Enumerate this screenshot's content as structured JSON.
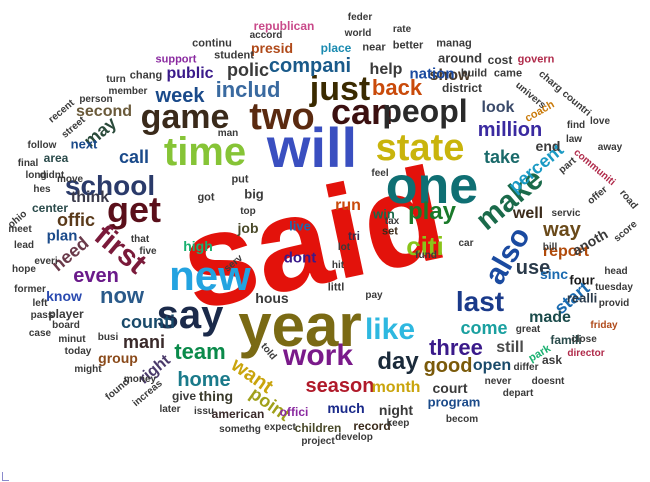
{
  "words": [
    {
      "t": "said",
      "c": "#e3120b"
    },
    {
      "t": "year",
      "c": "#7a6a14"
    },
    {
      "t": "will",
      "c": "#3a4fc0"
    },
    {
      "t": "one",
      "c": "#0f6f73"
    },
    {
      "t": "new",
      "c": "#23a3e0"
    },
    {
      "t": "time",
      "c": "#86c436"
    },
    {
      "t": "state",
      "c": "#c9b40c"
    },
    {
      "t": "two",
      "c": "#5a2a10"
    },
    {
      "t": "say",
      "c": "#1b2a4a"
    },
    {
      "t": "get",
      "c": "#5a0f1a"
    },
    {
      "t": "game",
      "c": "#3a2a1a"
    },
    {
      "t": "can",
      "c": "#3b1010"
    },
    {
      "t": "peopl",
      "c": "#2a2a2a"
    },
    {
      "t": "just",
      "c": "#3a2a00"
    },
    {
      "t": "first",
      "c": "#7a1a3a"
    },
    {
      "t": "school",
      "c": "#2a3a6a"
    },
    {
      "t": "like",
      "c": "#2eb8e0"
    },
    {
      "t": "work",
      "c": "#7a1a8a"
    },
    {
      "t": "make",
      "c": "#1a6a4a"
    },
    {
      "t": "also",
      "c": "#1a4aa0"
    },
    {
      "t": "play",
      "c": "#1a7a2a"
    },
    {
      "t": "citi",
      "c": "#8ac41a"
    },
    {
      "t": "back",
      "c": "#c94a0a"
    },
    {
      "t": "includ",
      "c": "#3a6aa0"
    },
    {
      "t": "week",
      "c": "#1a4a8a"
    },
    {
      "t": "compani",
      "c": "#1a5a8a"
    },
    {
      "t": "polic",
      "c": "#3a3a3a"
    },
    {
      "t": "last",
      "c": "#1a3a8a"
    },
    {
      "t": "team",
      "c": "#0a8a4a"
    },
    {
      "t": "day",
      "c": "#1a2a3a"
    },
    {
      "t": "now",
      "c": "#2a5a8a"
    },
    {
      "t": "even",
      "c": "#6a1a8a"
    },
    {
      "t": "three",
      "c": "#3a1a8a"
    },
    {
      "t": "good",
      "c": "#7a5a0a"
    },
    {
      "t": "million",
      "c": "#3a2aa0"
    },
    {
      "t": "percent",
      "c": "#1a9ac4"
    },
    {
      "t": "use",
      "c": "#2a3a4a"
    },
    {
      "t": "way",
      "c": "#6a4a1a"
    },
    {
      "t": "call",
      "c": "#1a4a8a"
    },
    {
      "t": "take",
      "c": "#1a6a6a"
    },
    {
      "t": "season",
      "c": "#b01a2a"
    },
    {
      "t": "want",
      "c": "#c9a40c"
    },
    {
      "t": "home",
      "c": "#1a7a8a"
    },
    {
      "t": "counti",
      "c": "#1a4a6a"
    },
    {
      "t": "come",
      "c": "#1aa0a0"
    },
    {
      "t": "point",
      "c": "#a0a01a"
    },
    {
      "t": "start",
      "c": "#1a6ab0"
    },
    {
      "t": "run",
      "c": "#c94a0a"
    },
    {
      "t": "offic",
      "c": "#5a3a1a"
    },
    {
      "t": "need",
      "c": "#6a3a4a"
    },
    {
      "t": "may",
      "c": "#2a4a3a"
    },
    {
      "t": "mani",
      "c": "#3a2a2a"
    },
    {
      "t": "think",
      "c": "#3a3a4a"
    },
    {
      "t": "report",
      "c": "#b04a0a"
    },
    {
      "t": "made",
      "c": "#1a4a4a"
    },
    {
      "t": "look",
      "c": "#3a4a6a"
    },
    {
      "t": "show",
      "c": "#4a3a2a"
    },
    {
      "t": "help",
      "c": "#3a3a3a"
    },
    {
      "t": "public",
      "c": "#3a1a8a"
    },
    {
      "t": "nation",
      "c": "#1a4aa0"
    },
    {
      "t": "second",
      "c": "#6a5a3a"
    },
    {
      "t": "right",
      "c": "#4a3a6a"
    },
    {
      "t": "end",
      "c": "#3a3a3a"
    },
    {
      "t": "month",
      "c": "#c9a40c"
    },
    {
      "t": "much",
      "c": "#1a2a8a"
    },
    {
      "t": "open",
      "c": "#1a4a6a"
    },
    {
      "t": "still",
      "c": "#4a4a4a"
    },
    {
      "t": "sinc",
      "c": "#1a6ab0"
    },
    {
      "t": "well",
      "c": "#3a2a1a"
    },
    {
      "t": "anoth",
      "c": "#3a3a3a"
    },
    {
      "t": "plan",
      "c": "#1a4a8a"
    },
    {
      "t": "know",
      "c": "#2a4ab0"
    },
    {
      "t": "dont",
      "c": "#3a1a8a"
    },
    {
      "t": "hous",
      "c": "#3a3a3a"
    },
    {
      "t": "job",
      "c": "#4a4a2a"
    },
    {
      "t": "night",
      "c": "#3a3a3a"
    },
    {
      "t": "court",
      "c": "#3a3a3a"
    },
    {
      "t": "group",
      "c": "#8a4a1a"
    },
    {
      "t": "program",
      "c": "#1a4a8a"
    },
    {
      "t": "four",
      "c": "#1a1a1a"
    },
    {
      "t": "realli",
      "c": "#2a3a4a"
    },
    {
      "t": "famili",
      "c": "#2a4a4a"
    },
    {
      "t": "american",
      "c": "#3a2a2a"
    },
    {
      "t": "thing",
      "c": "#3a3a2a"
    },
    {
      "t": "next",
      "c": "#1a4a8a"
    },
    {
      "t": "area",
      "c": "#2a4a4a"
    },
    {
      "t": "live",
      "c": "#1a6ab0"
    },
    {
      "t": "presid",
      "c": "#b04a1a"
    },
    {
      "t": "high",
      "c": "#1ab070"
    },
    {
      "t": "center",
      "c": "#2a4a4a"
    },
    {
      "t": "big",
      "c": "#3a3a3a"
    },
    {
      "t": "player",
      "c": "#3a3a3a"
    },
    {
      "t": "offici",
      "c": "#8a2aa0"
    },
    {
      "t": "children",
      "c": "#4a4a2a"
    },
    {
      "t": "record",
      "c": "#3a2a1a"
    },
    {
      "t": "give",
      "c": "#3a3a3a"
    },
    {
      "t": "ask",
      "c": "#3a3a3a"
    },
    {
      "t": "win",
      "c": "#1a6a4a"
    },
    {
      "t": "tri",
      "c": "#3a2a4a"
    },
    {
      "t": "set",
      "c": "#3a2a1a"
    },
    {
      "t": "littl",
      "c": "#3a3a3a"
    },
    {
      "t": "around",
      "c": "#3a3a3a"
    },
    {
      "t": "district",
      "c": "#3a3a3a"
    },
    {
      "t": "cost",
      "c": "#3a3a3a"
    },
    {
      "t": "build",
      "c": "#3a3a3a"
    },
    {
      "t": "came",
      "c": "#3a3a3a"
    },
    {
      "t": "better",
      "c": "#3a3a3a"
    },
    {
      "t": "manag",
      "c": "#3a3a3a"
    },
    {
      "t": "feder",
      "c": "#3a3a3a"
    },
    {
      "t": "world",
      "c": "#3a3a3a"
    },
    {
      "t": "rate",
      "c": "#3a3a3a"
    },
    {
      "t": "republican",
      "c": "#c94a8a"
    },
    {
      "t": "accord",
      "c": "#3a3a3a"
    },
    {
      "t": "continu",
      "c": "#3a3a3a"
    },
    {
      "t": "student",
      "c": "#3a3a3a"
    },
    {
      "t": "place",
      "c": "#1a8ab0"
    },
    {
      "t": "near",
      "c": "#3a3a3a"
    },
    {
      "t": "support",
      "c": "#8a2aa0"
    },
    {
      "t": "chang",
      "c": "#3a3a3a"
    },
    {
      "t": "turn",
      "c": "#3a3a3a"
    },
    {
      "t": "member",
      "c": "#3a3a3a"
    },
    {
      "t": "person",
      "c": "#3a3a3a"
    },
    {
      "t": "recent",
      "c": "#3a3a3a"
    },
    {
      "t": "univers",
      "c": "#3a3a3a"
    },
    {
      "t": "charg",
      "c": "#3a3a3a"
    },
    {
      "t": "govern",
      "c": "#b02a4a"
    },
    {
      "t": "countri",
      "c": "#3a3a3a"
    },
    {
      "t": "coach",
      "c": "#c97a0a"
    },
    {
      "t": "find",
      "c": "#3a3a3a"
    },
    {
      "t": "love",
      "c": "#3a3a3a"
    },
    {
      "t": "law",
      "c": "#3a3a3a"
    },
    {
      "t": "part",
      "c": "#3a3a3a"
    },
    {
      "t": "communiti",
      "c": "#b02a4a"
    },
    {
      "t": "away",
      "c": "#3a3a3a"
    },
    {
      "t": "offer",
      "c": "#3a3a3a"
    },
    {
      "t": "road",
      "c": "#3a3a3a"
    },
    {
      "t": "servic",
      "c": "#3a3a3a"
    },
    {
      "t": "bill",
      "c": "#3a3a3a"
    },
    {
      "t": "score",
      "c": "#3a3a3a"
    },
    {
      "t": "head",
      "c": "#3a3a3a"
    },
    {
      "t": "tuesday",
      "c": "#3a3a3a"
    },
    {
      "t": "provid",
      "c": "#3a3a3a"
    },
    {
      "t": "friday",
      "c": "#b04a1a"
    },
    {
      "t": "close",
      "c": "#3a3a3a"
    },
    {
      "t": "director",
      "c": "#b02a4a"
    },
    {
      "t": "park",
      "c": "#1ab070"
    },
    {
      "t": "great",
      "c": "#3a3a3a"
    },
    {
      "t": "differ",
      "c": "#3a3a3a"
    },
    {
      "t": "never",
      "c": "#3a3a3a"
    },
    {
      "t": "doesnt",
      "c": "#3a3a3a"
    },
    {
      "t": "depart",
      "c": "#3a3a3a"
    },
    {
      "t": "becom",
      "c": "#3a3a3a"
    },
    {
      "t": "keep",
      "c": "#3a3a3a"
    },
    {
      "t": "develop",
      "c": "#3a3a3a"
    },
    {
      "t": "project",
      "c": "#3a3a3a"
    },
    {
      "t": "expect",
      "c": "#3a3a3a"
    },
    {
      "t": "somethg",
      "c": "#3a3a3a"
    },
    {
      "t": "issu",
      "c": "#3a3a3a"
    },
    {
      "t": "later",
      "c": "#3a3a3a"
    },
    {
      "t": "increas",
      "c": "#3a3a3a"
    },
    {
      "t": "found",
      "c": "#3a3a3a"
    },
    {
      "t": "money",
      "c": "#3a3a3a"
    },
    {
      "t": "might",
      "c": "#3a3a3a"
    },
    {
      "t": "today",
      "c": "#3a3a3a"
    },
    {
      "t": "minut",
      "c": "#3a3a3a"
    },
    {
      "t": "board",
      "c": "#3a3a3a"
    },
    {
      "t": "busi",
      "c": "#3a3a3a"
    },
    {
      "t": "former",
      "c": "#3a3a3a"
    },
    {
      "t": "left",
      "c": "#3a3a3a"
    },
    {
      "t": "hope",
      "c": "#3a3a3a"
    },
    {
      "t": "everi",
      "c": "#3a3a3a"
    },
    {
      "t": "lead",
      "c": "#3a3a3a"
    },
    {
      "t": "ohio",
      "c": "#3a3a3a"
    },
    {
      "t": "meet",
      "c": "#3a3a3a"
    },
    {
      "t": "case",
      "c": "#3a3a3a"
    },
    {
      "t": "pass",
      "c": "#3a3a3a"
    },
    {
      "t": "final",
      "c": "#3a3a3a"
    },
    {
      "t": "long",
      "c": "#3a3a3a"
    },
    {
      "t": "didnt",
      "c": "#3a3a3a"
    },
    {
      "t": "hes",
      "c": "#3a3a3a"
    },
    {
      "t": "move",
      "c": "#3a3a3a"
    },
    {
      "t": "follow",
      "c": "#3a3a3a"
    },
    {
      "t": "street",
      "c": "#3a3a3a"
    },
    {
      "t": "man",
      "c": "#3a3a3a"
    },
    {
      "t": "got",
      "c": "#3a3a3a"
    },
    {
      "t": "put",
      "c": "#3a3a3a"
    },
    {
      "t": "top",
      "c": "#3a3a3a"
    },
    {
      "t": "five",
      "c": "#3a3a3a"
    },
    {
      "t": "that",
      "c": "#3a3a3a"
    },
    {
      "t": "serv",
      "c": "#3a3a3a"
    },
    {
      "t": "tax",
      "c": "#3a3a3a"
    },
    {
      "t": "hit",
      "c": "#3a3a3a"
    },
    {
      "t": "lot",
      "c": "#3a3a3a"
    },
    {
      "t": "fund",
      "c": "#3a3a3a"
    },
    {
      "t": "car",
      "c": "#3a3a3a"
    },
    {
      "t": "told",
      "c": "#3a3a3a"
    },
    {
      "t": "pay",
      "c": "#3a3a3a"
    },
    {
      "t": "feel",
      "c": "#3a3a3a"
    }
  ]
}
